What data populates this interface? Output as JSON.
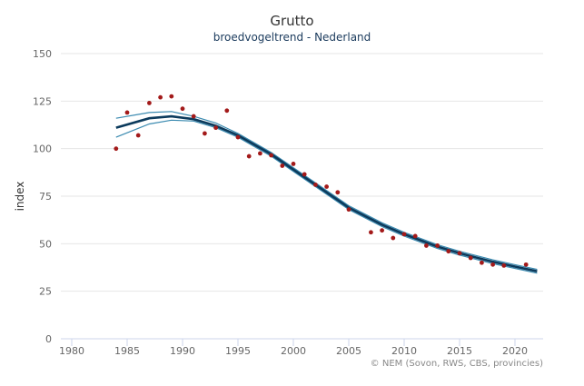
{
  "chart_data": {
    "type": "line",
    "title": "Grutto",
    "subtitle": "broedvogeltrend - Nederland",
    "xlabel": "",
    "ylabel": "index",
    "xlim": [
      1979,
      2023
    ],
    "ylim": [
      0,
      150
    ],
    "xticks": [
      1980,
      1985,
      1990,
      1995,
      2000,
      2005,
      2010,
      2015,
      2020
    ],
    "yticks": [
      0,
      25,
      50,
      75,
      100,
      125,
      150
    ],
    "grid": true,
    "colors": {
      "points": "#a31a1a",
      "trend": "#0b3a5c",
      "band": "#3a8ab0"
    },
    "points": {
      "x": [
        1984,
        1985,
        1986,
        1987,
        1988,
        1989,
        1990,
        1991,
        1992,
        1993,
        1994,
        1995,
        1996,
        1997,
        1998,
        1999,
        2000,
        2001,
        2002,
        2003,
        2004,
        2005,
        2007,
        2008,
        2009,
        2010,
        2011,
        2012,
        2013,
        2014,
        2015,
        2016,
        2017,
        2018,
        2019,
        2021
      ],
      "y": [
        100,
        119,
        107,
        124,
        127,
        127.5,
        121,
        117,
        108,
        111,
        120,
        106,
        96,
        97.5,
        96.5,
        91,
        92,
        86.5,
        81,
        80,
        77,
        68,
        56,
        57,
        53,
        55,
        54,
        49,
        49,
        46,
        45,
        42.5,
        40,
        39,
        38.5,
        39
      ]
    },
    "trend": {
      "x": [
        1984,
        1987,
        1989,
        1991,
        1993,
        1995,
        1998,
        2000,
        2003,
        2005,
        2008,
        2010,
        2013,
        2015,
        2018,
        2020,
        2022
      ],
      "y": [
        111,
        116,
        117,
        115.5,
        112,
        107,
        97,
        89,
        77,
        69,
        60,
        55,
        48.5,
        45,
        40.5,
        38,
        35.5
      ],
      "lower": [
        106,
        113,
        115,
        114.5,
        111,
        106,
        96,
        88,
        76,
        68,
        59,
        54,
        47.5,
        44,
        39.5,
        37,
        34.5
      ],
      "upper": [
        116,
        119,
        119.5,
        117,
        113.5,
        108,
        98,
        90,
        78,
        70,
        61,
        56,
        49.5,
        46,
        41.5,
        39,
        36.5
      ]
    },
    "credit": "© NEM (Sovon, RWS, CBS, provincies)"
  }
}
